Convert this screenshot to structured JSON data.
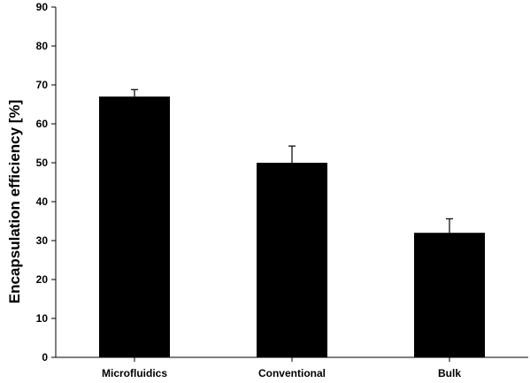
{
  "chart_data": {
    "type": "bar",
    "title": "",
    "xlabel": "",
    "ylabel": "Encapsulation efficiency [%]",
    "ylim": [
      0,
      90
    ],
    "yticks": [
      0,
      10,
      20,
      30,
      40,
      50,
      60,
      70,
      80,
      90
    ],
    "grid": false,
    "legend": "none",
    "bar_color": "#000000",
    "categories": [
      "Microfluidics",
      "Conventional",
      "Bulk"
    ],
    "values": [
      67,
      50,
      32
    ],
    "error": [
      1.8,
      4.3,
      3.6
    ]
  }
}
